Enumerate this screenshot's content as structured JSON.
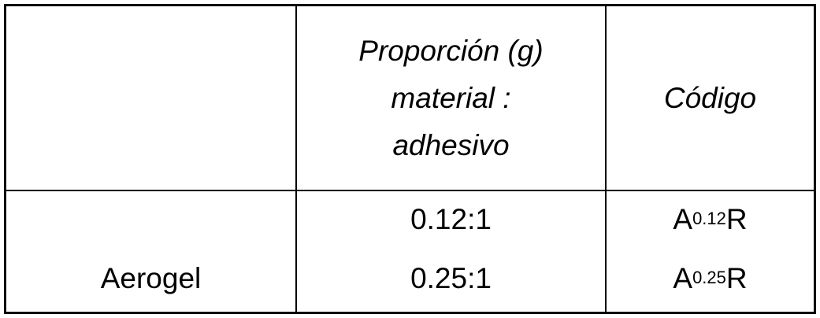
{
  "table": {
    "header": {
      "col1": "",
      "col2_lines": [
        "Proporción (g)",
        "material :",
        "adhesivo"
      ],
      "col3": "Código"
    },
    "row": {
      "material": "Aerogel",
      "ratios": [
        "0.12:1",
        "0.25:1"
      ],
      "codes": [
        {
          "base": "A",
          "sub": "0.12",
          "suffix": "R"
        },
        {
          "base": "A",
          "sub": "0.25",
          "suffix": "R"
        }
      ]
    }
  }
}
